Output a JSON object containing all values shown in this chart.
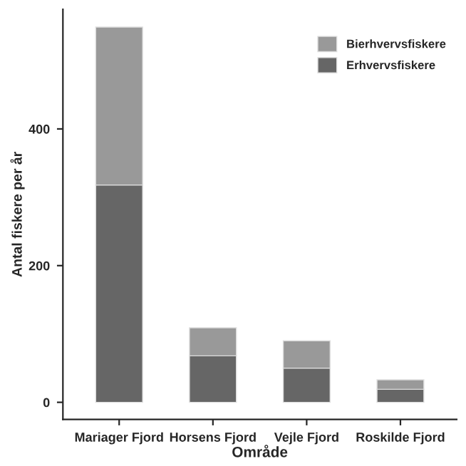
{
  "chart_data": {
    "type": "bar",
    "stacked": true,
    "xlabel": "Område",
    "ylabel": "Antal fiskere per år",
    "categories": [
      "Mariager Fjord",
      "Horsens Fjord",
      "Vejle Fjord",
      "Roskilde Fjord"
    ],
    "series": [
      {
        "name": "Erhvervsfiskere",
        "color": "#666666",
        "values": [
          318,
          68,
          50,
          19
        ]
      },
      {
        "name": "Bierhvervsfiskere",
        "color": "#999999",
        "values": [
          231,
          41,
          40,
          14
        ]
      }
    ],
    "ylim": [
      -25,
      575
    ],
    "yticks": [
      0,
      200,
      400
    ],
    "grid": false,
    "legend": "top right"
  }
}
